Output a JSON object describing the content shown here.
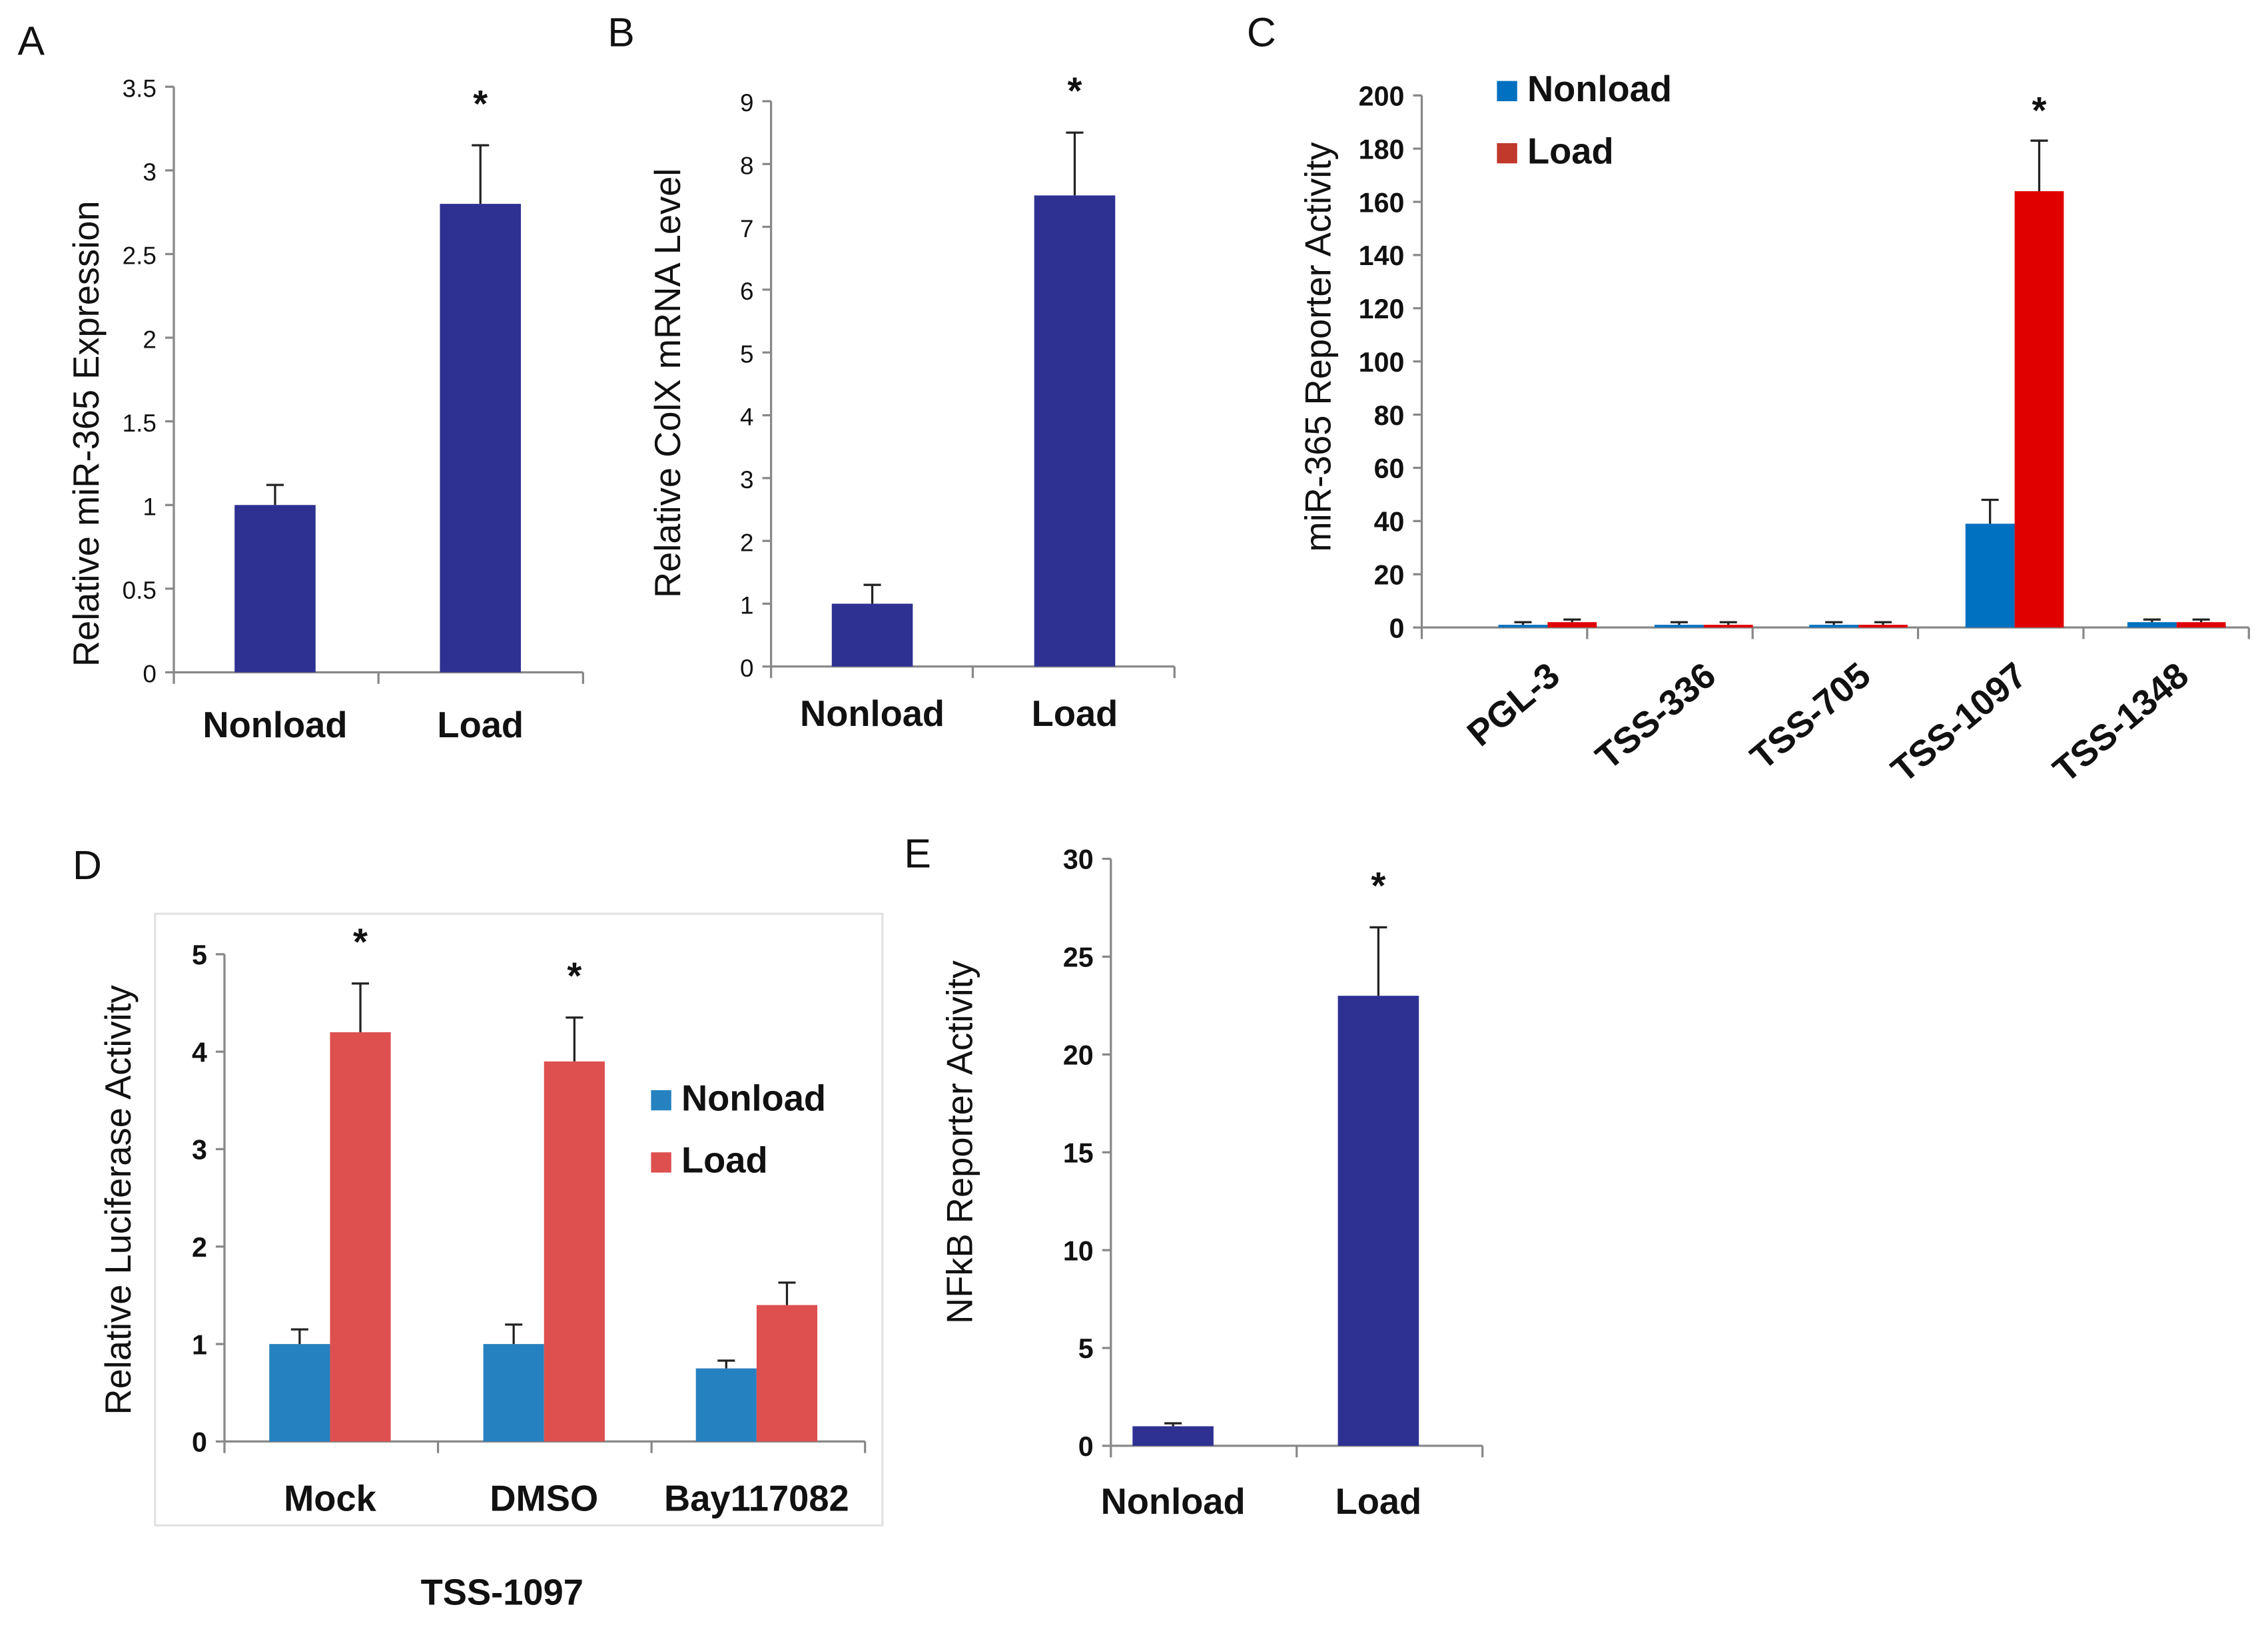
{
  "chart_data": [
    {
      "panel": "A",
      "type": "bar",
      "ylabel": "Relative miR-365 Expression",
      "categories": [
        "Nonload",
        "Load"
      ],
      "yticks": [
        "0",
        "0.5",
        "1",
        "1.5",
        "2",
        "2.5",
        "3",
        "3.5"
      ],
      "ylim": [
        0,
        3.5
      ],
      "series": [
        {
          "name": "",
          "color": "#2E3192",
          "values": [
            1.0,
            2.8
          ],
          "errors": [
            0.12,
            0.35
          ]
        }
      ],
      "significance": [
        "",
        "*"
      ]
    },
    {
      "panel": "B",
      "type": "bar",
      "ylabel": "Relative  ColX  mRNA Level",
      "categories": [
        "Nonload",
        "Load"
      ],
      "yticks": [
        "0",
        "1",
        "2",
        "3",
        "4",
        "5",
        "6",
        "7",
        "8",
        "9"
      ],
      "ylim": [
        0,
        9
      ],
      "series": [
        {
          "name": "",
          "color": "#2E3192",
          "values": [
            1.0,
            7.5
          ],
          "errors": [
            0.3,
            1.0
          ]
        }
      ],
      "significance": [
        "",
        "*"
      ]
    },
    {
      "panel": "C",
      "type": "bar",
      "ylabel": "miR-365 Reporter Activity",
      "categories": [
        "PGL-3",
        "TSS-336",
        "TSS-705",
        "TSS-1097",
        "TSS-1348"
      ],
      "yticks": [
        "0",
        "20",
        "40",
        "60",
        "80",
        "100",
        "120",
        "140",
        "160",
        "180",
        "200"
      ],
      "ylim": [
        0,
        200
      ],
      "legend": "top-left",
      "series": [
        {
          "name": "Nonload",
          "color": "#0070C0",
          "values": [
            1,
            1,
            1,
            39,
            2
          ],
          "errors": [
            1,
            1,
            1,
            9,
            1
          ]
        },
        {
          "name": "Load",
          "color": "#E00000",
          "legend_color": "#C0392B",
          "values": [
            2,
            1,
            1,
            164,
            2
          ],
          "errors": [
            1,
            1,
            1,
            19,
            1
          ]
        }
      ],
      "significance": [
        "",
        "",
        "",
        "*",
        ""
      ]
    },
    {
      "panel": "D",
      "type": "bar",
      "ylabel": "Relative Luciferase Activity",
      "xlabel": "TSS-1097",
      "categories": [
        "Mock",
        "DMSO",
        "Bay117082"
      ],
      "yticks": [
        "0",
        "1",
        "2",
        "3",
        "4",
        "5"
      ],
      "ylim": [
        0,
        5
      ],
      "legend": "right",
      "series": [
        {
          "name": "Nonload",
          "color": "#2681C0",
          "values": [
            1.0,
            1.0,
            0.75
          ],
          "errors": [
            0.15,
            0.2,
            0.08
          ]
        },
        {
          "name": "Load",
          "color": "#DE4F4F",
          "values": [
            4.2,
            3.9,
            1.4
          ],
          "errors": [
            0.5,
            0.45,
            0.23
          ]
        }
      ],
      "significance": [
        "*",
        "*",
        ""
      ]
    },
    {
      "panel": "E",
      "type": "bar",
      "ylabel": "NFkB Reporter Activity",
      "categories": [
        "Nonload",
        "Load"
      ],
      "yticks": [
        "0",
        "5",
        "10",
        "15",
        "20",
        "25",
        "30"
      ],
      "ylim": [
        0,
        30
      ],
      "series": [
        {
          "name": "",
          "color": "#2E3192",
          "values": [
            1.0,
            23.0
          ],
          "errors": [
            0.15,
            3.5
          ]
        }
      ],
      "significance": [
        "",
        "*"
      ]
    }
  ]
}
